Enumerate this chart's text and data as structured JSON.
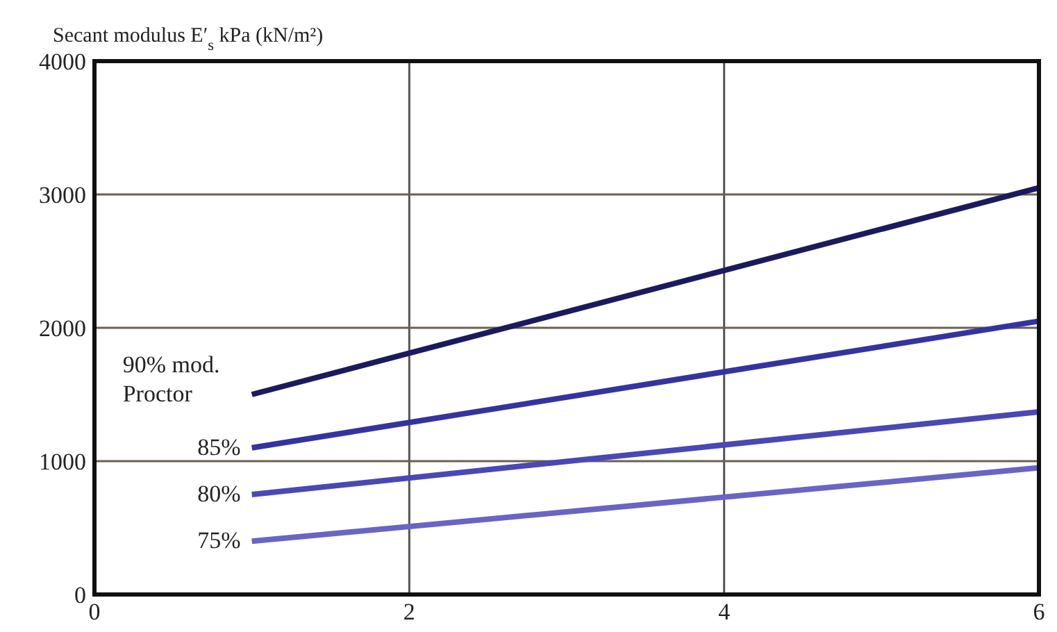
{
  "chart_data": {
    "type": "line",
    "ylabel": "Secant modulus E′$_{s}$ kPa (kN/m²)",
    "x": [
      1,
      6
    ],
    "xlim": [
      0,
      6
    ],
    "xticks": [
      0,
      2,
      4,
      6
    ],
    "ylim": [
      0,
      4000
    ],
    "yticks": [
      0,
      1000,
      2000,
      3000,
      4000
    ],
    "grid": true,
    "line_style": "solid",
    "series": [
      {
        "name": "90% mod. Proctor",
        "color": "#1c1a5e",
        "values": [
          1500,
          3050
        ]
      },
      {
        "name": "85%",
        "color": "#3434a0",
        "values": [
          1100,
          2050
        ]
      },
      {
        "name": "80%",
        "color": "#4a48b4",
        "values": [
          750,
          1370
        ]
      },
      {
        "name": "75%",
        "color": "#6a64c4",
        "values": [
          400,
          950
        ]
      }
    ]
  }
}
